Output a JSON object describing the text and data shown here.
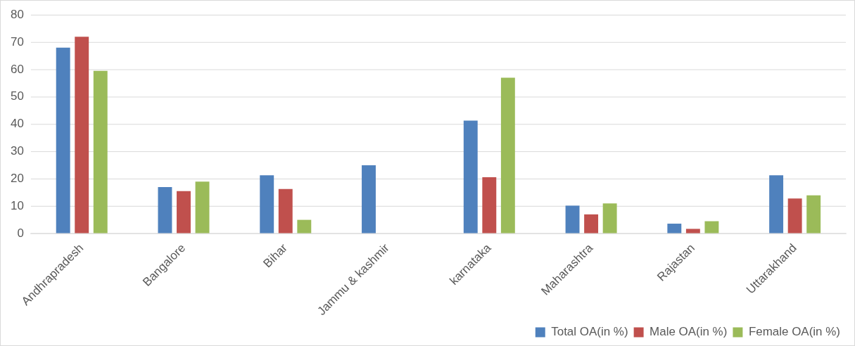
{
  "chart_data": {
    "type": "bar",
    "categories": [
      "Andhrapradesh",
      "Bangalore",
      "Bihar",
      "Jammu & kashmir",
      "karnataka",
      "Maharashtra",
      "Rajastan",
      "Uttarakhand"
    ],
    "series": [
      {
        "name": "Total OA(in %)",
        "color": "#4f81bd",
        "values": [
          68,
          17,
          21.3,
          25,
          41.3,
          10.2,
          3.6,
          21.3
        ]
      },
      {
        "name": "Male OA(in %)",
        "color": "#c0504d",
        "values": [
          72,
          15.5,
          16.3,
          0,
          20.6,
          7,
          1.7,
          12.8
        ]
      },
      {
        "name": "Female OA(in %)",
        "color": "#9bbb59",
        "values": [
          59.5,
          19,
          5,
          0,
          57,
          11,
          4.5,
          14
        ]
      }
    ],
    "ylim": [
      0,
      80
    ],
    "yticks": [
      0,
      10,
      20,
      30,
      40,
      50,
      60,
      70,
      80
    ],
    "grid": "y",
    "legend": "bottom"
  }
}
